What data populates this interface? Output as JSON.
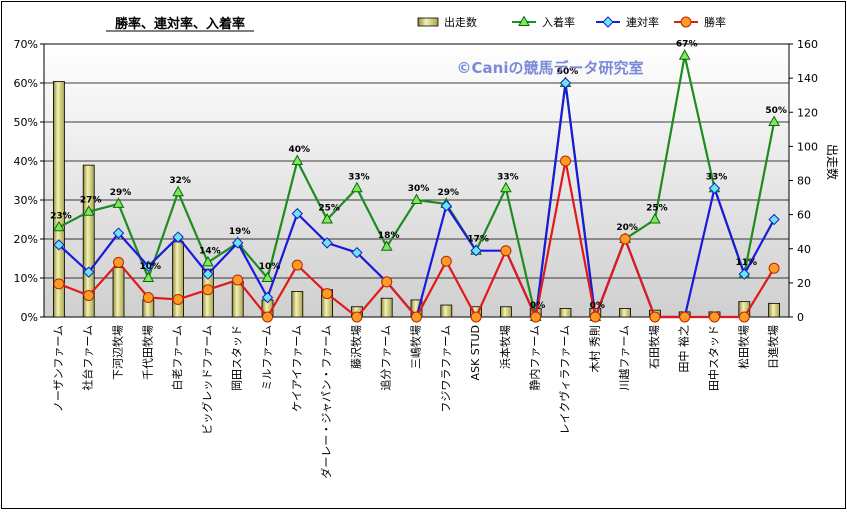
{
  "chart_data": {
    "type": "bar+line",
    "title": "勝率、連対率、入着率",
    "watermark": "©Caniの競馬データ研究室",
    "y2label": "出走数",
    "ylim": [
      0,
      70
    ],
    "y2lim": [
      0,
      160
    ],
    "yticks": [
      "0%",
      "10%",
      "20%",
      "30%",
      "40%",
      "50%",
      "60%",
      "70%"
    ],
    "y2ticks": [
      "0",
      "20",
      "40",
      "60",
      "80",
      "100",
      "120",
      "140",
      "160"
    ],
    "grid": true,
    "legend_position": "top",
    "categories": [
      "ノーザンファーム",
      "社台ファーム",
      "下河辺牧場",
      "千代田牧場",
      "白老ファーム",
      "ビッグレッドファーム",
      "岡田スタッド",
      "ミルファーム",
      "ケイアイファーム",
      "ダーレー・ジャパン・ファーム",
      "藤沢牧場",
      "追分ファーム",
      "三嶋牧場",
      "フジワラファーム",
      "ASK STUD",
      "浜本牧場",
      "静内ファーム",
      "レイクヴィラファーム",
      "木村 秀則",
      "川越ファーム",
      "石田牧場",
      "田中 裕之",
      "田中スタッド",
      "松田牧場",
      "日進牧場"
    ],
    "series": [
      {
        "name": "出走数",
        "kind": "bar",
        "axis": "right",
        "color": "#e8e49a",
        "values": [
          138,
          89,
          29,
          10,
          44,
          28,
          21,
          10,
          15,
          16,
          6,
          11,
          10,
          7,
          6,
          6,
          5,
          5,
          5,
          5,
          4,
          3,
          3,
          9,
          8
        ]
      },
      {
        "name": "入着率",
        "kind": "line",
        "axis": "left",
        "color": "#1e8c1e",
        "marker": "triangle",
        "values": [
          23,
          27,
          29,
          10,
          32,
          14,
          19,
          10,
          40,
          25,
          33,
          18,
          30,
          29,
          17,
          33,
          0,
          60,
          0,
          20,
          25,
          67,
          33,
          11,
          50
        ]
      },
      {
        "name": "連対率",
        "kind": "line",
        "axis": "left",
        "color": "#1a1adc",
        "marker": "diamond",
        "values": [
          18.5,
          11.5,
          21.5,
          13,
          20.5,
          11,
          19,
          5,
          26.5,
          19,
          16.5,
          9,
          0,
          28.5,
          17,
          17,
          0,
          60,
          0,
          20,
          0,
          0,
          33,
          11,
          25
        ]
      },
      {
        "name": "勝率",
        "kind": "line",
        "axis": "left",
        "color": "#e01a1a",
        "marker": "circle",
        "values": [
          8.5,
          5.5,
          14,
          5,
          4.5,
          7,
          9.5,
          0,
          13.3,
          6,
          0,
          9,
          0,
          14.3,
          0,
          17,
          0,
          40,
          0,
          20,
          0,
          0,
          0,
          0,
          12.5
        ]
      }
    ],
    "data_labels": {
      "series": "入着率",
      "labels": [
        "23%",
        "27%",
        "29%",
        "10%",
        "32%",
        "14%",
        "19%",
        "10%",
        "40%",
        "25%",
        "33%",
        "18%",
        "30%",
        "29%",
        "17%",
        "33%",
        "0%",
        "60%",
        "0%",
        "20%",
        "25%",
        "67%",
        "33%",
        "11%",
        "50%"
      ]
    }
  }
}
